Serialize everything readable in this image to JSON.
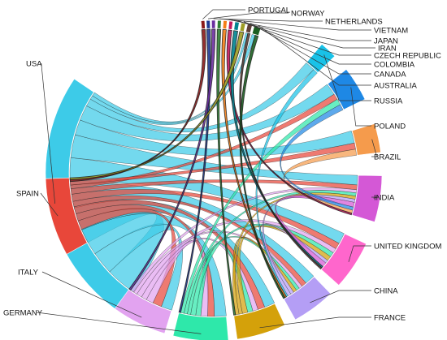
{
  "chart_data": {
    "type": "chord",
    "nodes": [
      {
        "name": "USA",
        "color": "#3dcbe8",
        "start": 214,
        "end": 304,
        "label_side": "left"
      },
      {
        "name": "PORTUGAL",
        "color": "#8b1a1a",
        "start": 355.2,
        "end": 356.6,
        "label_side": "right"
      },
      {
        "name": "NORWAY",
        "color": "#1f3a93",
        "start": 357.2,
        "end": 358.6,
        "label_side": "right"
      },
      {
        "name": "NETHERLANDS",
        "color": "#6b2fa0",
        "start": 359.2,
        "end": 0.6,
        "label_side": "right"
      },
      {
        "name": "VIETNAM",
        "color": "#2e7d32",
        "start": 1.4,
        "end": 2.8,
        "label_side": "right"
      },
      {
        "name": "JAPAN",
        "color": "#f57f17",
        "start": 3.6,
        "end": 5.0,
        "label_side": "right"
      },
      {
        "name": "IRAN",
        "color": "#c2185b",
        "start": 5.8,
        "end": 7.2,
        "label_side": "right"
      },
      {
        "name": "CZECH REPUBLIC",
        "color": "#00838f",
        "start": 8.0,
        "end": 9.6,
        "label_side": "right"
      },
      {
        "name": "COLOMBIA",
        "color": "#9e9d24",
        "start": 10.4,
        "end": 12.0,
        "label_side": "right"
      },
      {
        "name": "CANADA",
        "color": "#5d4037",
        "start": 12.8,
        "end": 14.6,
        "label_side": "right"
      },
      {
        "name": "AUSTRALIA",
        "color": "#1b5e20",
        "start": 15.4,
        "end": 18.0,
        "label_side": "right"
      },
      {
        "name": "RUSSIA",
        "color": "#19c2e8",
        "start": 40,
        "end": 46,
        "label_side": "right"
      },
      {
        "name": "POLAND",
        "color": "#1e88e5",
        "start": 52,
        "end": 64,
        "label_side": "right"
      },
      {
        "name": "BRAZIL",
        "color": "#f59b4c",
        "start": 73,
        "end": 83,
        "label_side": "right"
      },
      {
        "name": "INDIA",
        "color": "#d458d6",
        "start": 91,
        "end": 107,
        "label_side": "right"
      },
      {
        "name": "UNITED KINGDOM",
        "color": "#ff66cc",
        "start": 115,
        "end": 132,
        "label_side": "right"
      },
      {
        "name": "CHINA",
        "color": "#b49ef5",
        "start": 136,
        "end": 151,
        "label_side": "right"
      },
      {
        "name": "FRANCE",
        "color": "#d4a10a",
        "start": 155,
        "end": 172,
        "label_side": "right"
      },
      {
        "name": "GERMANY",
        "color": "#2ee8aa",
        "start": 175,
        "end": 194,
        "label_side": "left"
      },
      {
        "name": "ITALY",
        "color": "#e2a3f0",
        "start": 197,
        "end": 216,
        "label_side": "left"
      },
      {
        "name": "SPAIN",
        "color": "#e8473a",
        "start": 241,
        "end": 268,
        "label_side": "left"
      }
    ],
    "links": [
      {
        "source": "USA",
        "target": "SPAIN",
        "value": 8
      },
      {
        "source": "USA",
        "target": "ITALY",
        "value": 6
      },
      {
        "source": "USA",
        "target": "GERMANY",
        "value": 7
      },
      {
        "source": "USA",
        "target": "FRANCE",
        "value": 6
      },
      {
        "source": "USA",
        "target": "CHINA",
        "value": 6
      },
      {
        "source": "USA",
        "target": "UNITED KINGDOM",
        "value": 7
      },
      {
        "source": "USA",
        "target": "INDIA",
        "value": 6
      },
      {
        "source": "USA",
        "target": "BRAZIL",
        "value": 4
      },
      {
        "source": "USA",
        "target": "POLAND",
        "value": 4
      },
      {
        "source": "USA",
        "target": "RUSSIA",
        "value": 2
      },
      {
        "source": "USA",
        "target": "AUSTRALIA",
        "value": 1
      },
      {
        "source": "USA",
        "target": "CANADA",
        "value": 1
      },
      {
        "source": "SPAIN",
        "target": "ITALY",
        "value": 5
      },
      {
        "source": "SPAIN",
        "target": "GERMANY",
        "value": 4
      },
      {
        "source": "SPAIN",
        "target": "FRANCE",
        "value": 4
      },
      {
        "source": "SPAIN",
        "target": "CHINA",
        "value": 3
      },
      {
        "source": "SPAIN",
        "target": "UNITED KINGDOM",
        "value": 4
      },
      {
        "source": "SPAIN",
        "target": "INDIA",
        "value": 3
      },
      {
        "source": "SPAIN",
        "target": "POLAND",
        "value": 2
      },
      {
        "source": "SPAIN",
        "target": "BRAZIL",
        "value": 2
      },
      {
        "source": "ITALY",
        "target": "GERMANY",
        "value": 4
      },
      {
        "source": "ITALY",
        "target": "FRANCE",
        "value": 3
      },
      {
        "source": "ITALY",
        "target": "UNITED KINGDOM",
        "value": 3
      },
      {
        "source": "ITALY",
        "target": "CHINA",
        "value": 2
      },
      {
        "source": "ITALY",
        "target": "INDIA",
        "value": 2
      },
      {
        "source": "GERMANY",
        "target": "FRANCE",
        "value": 3
      },
      {
        "source": "GERMANY",
        "target": "UNITED KINGDOM",
        "value": 3
      },
      {
        "source": "GERMANY",
        "target": "CHINA",
        "value": 2
      },
      {
        "source": "GERMANY",
        "target": "INDIA",
        "value": 2
      },
      {
        "source": "GERMANY",
        "target": "POLAND",
        "value": 2
      },
      {
        "source": "FRANCE",
        "target": "UNITED KINGDOM",
        "value": 3
      },
      {
        "source": "FRANCE",
        "target": "CHINA",
        "value": 2
      },
      {
        "source": "FRANCE",
        "target": "INDIA",
        "value": 2
      },
      {
        "source": "CHINA",
        "target": "UNITED KINGDOM",
        "value": 2
      },
      {
        "source": "CHINA",
        "target": "INDIA",
        "value": 2
      },
      {
        "source": "INDIA",
        "target": "UNITED KINGDOM",
        "value": 3
      },
      {
        "source": "POLAND",
        "target": "INDIA",
        "value": 2
      },
      {
        "source": "BRAZIL",
        "target": "INDIA",
        "value": 2
      },
      {
        "source": "RUSSIA",
        "target": "CHINA",
        "value": 1
      },
      {
        "source": "PORTUGAL",
        "target": "SPAIN",
        "value": 1
      },
      {
        "source": "NORWAY",
        "target": "GERMANY",
        "value": 1
      },
      {
        "source": "NETHERLANDS",
        "target": "ITALY",
        "value": 1
      },
      {
        "source": "VIETNAM",
        "target": "FRANCE",
        "value": 1
      },
      {
        "source": "JAPAN",
        "target": "CHINA",
        "value": 1
      },
      {
        "source": "IRAN",
        "target": "INDIA",
        "value": 1
      },
      {
        "source": "CZECH REPUBLIC",
        "target": "UNITED KINGDOM",
        "value": 1
      },
      {
        "source": "COLOMBIA",
        "target": "SPAIN",
        "value": 1
      },
      {
        "source": "CANADA",
        "target": "UNITED KINGDOM",
        "value": 1
      },
      {
        "source": "AUSTRALIA",
        "target": "CHINA",
        "value": 1
      }
    ]
  }
}
